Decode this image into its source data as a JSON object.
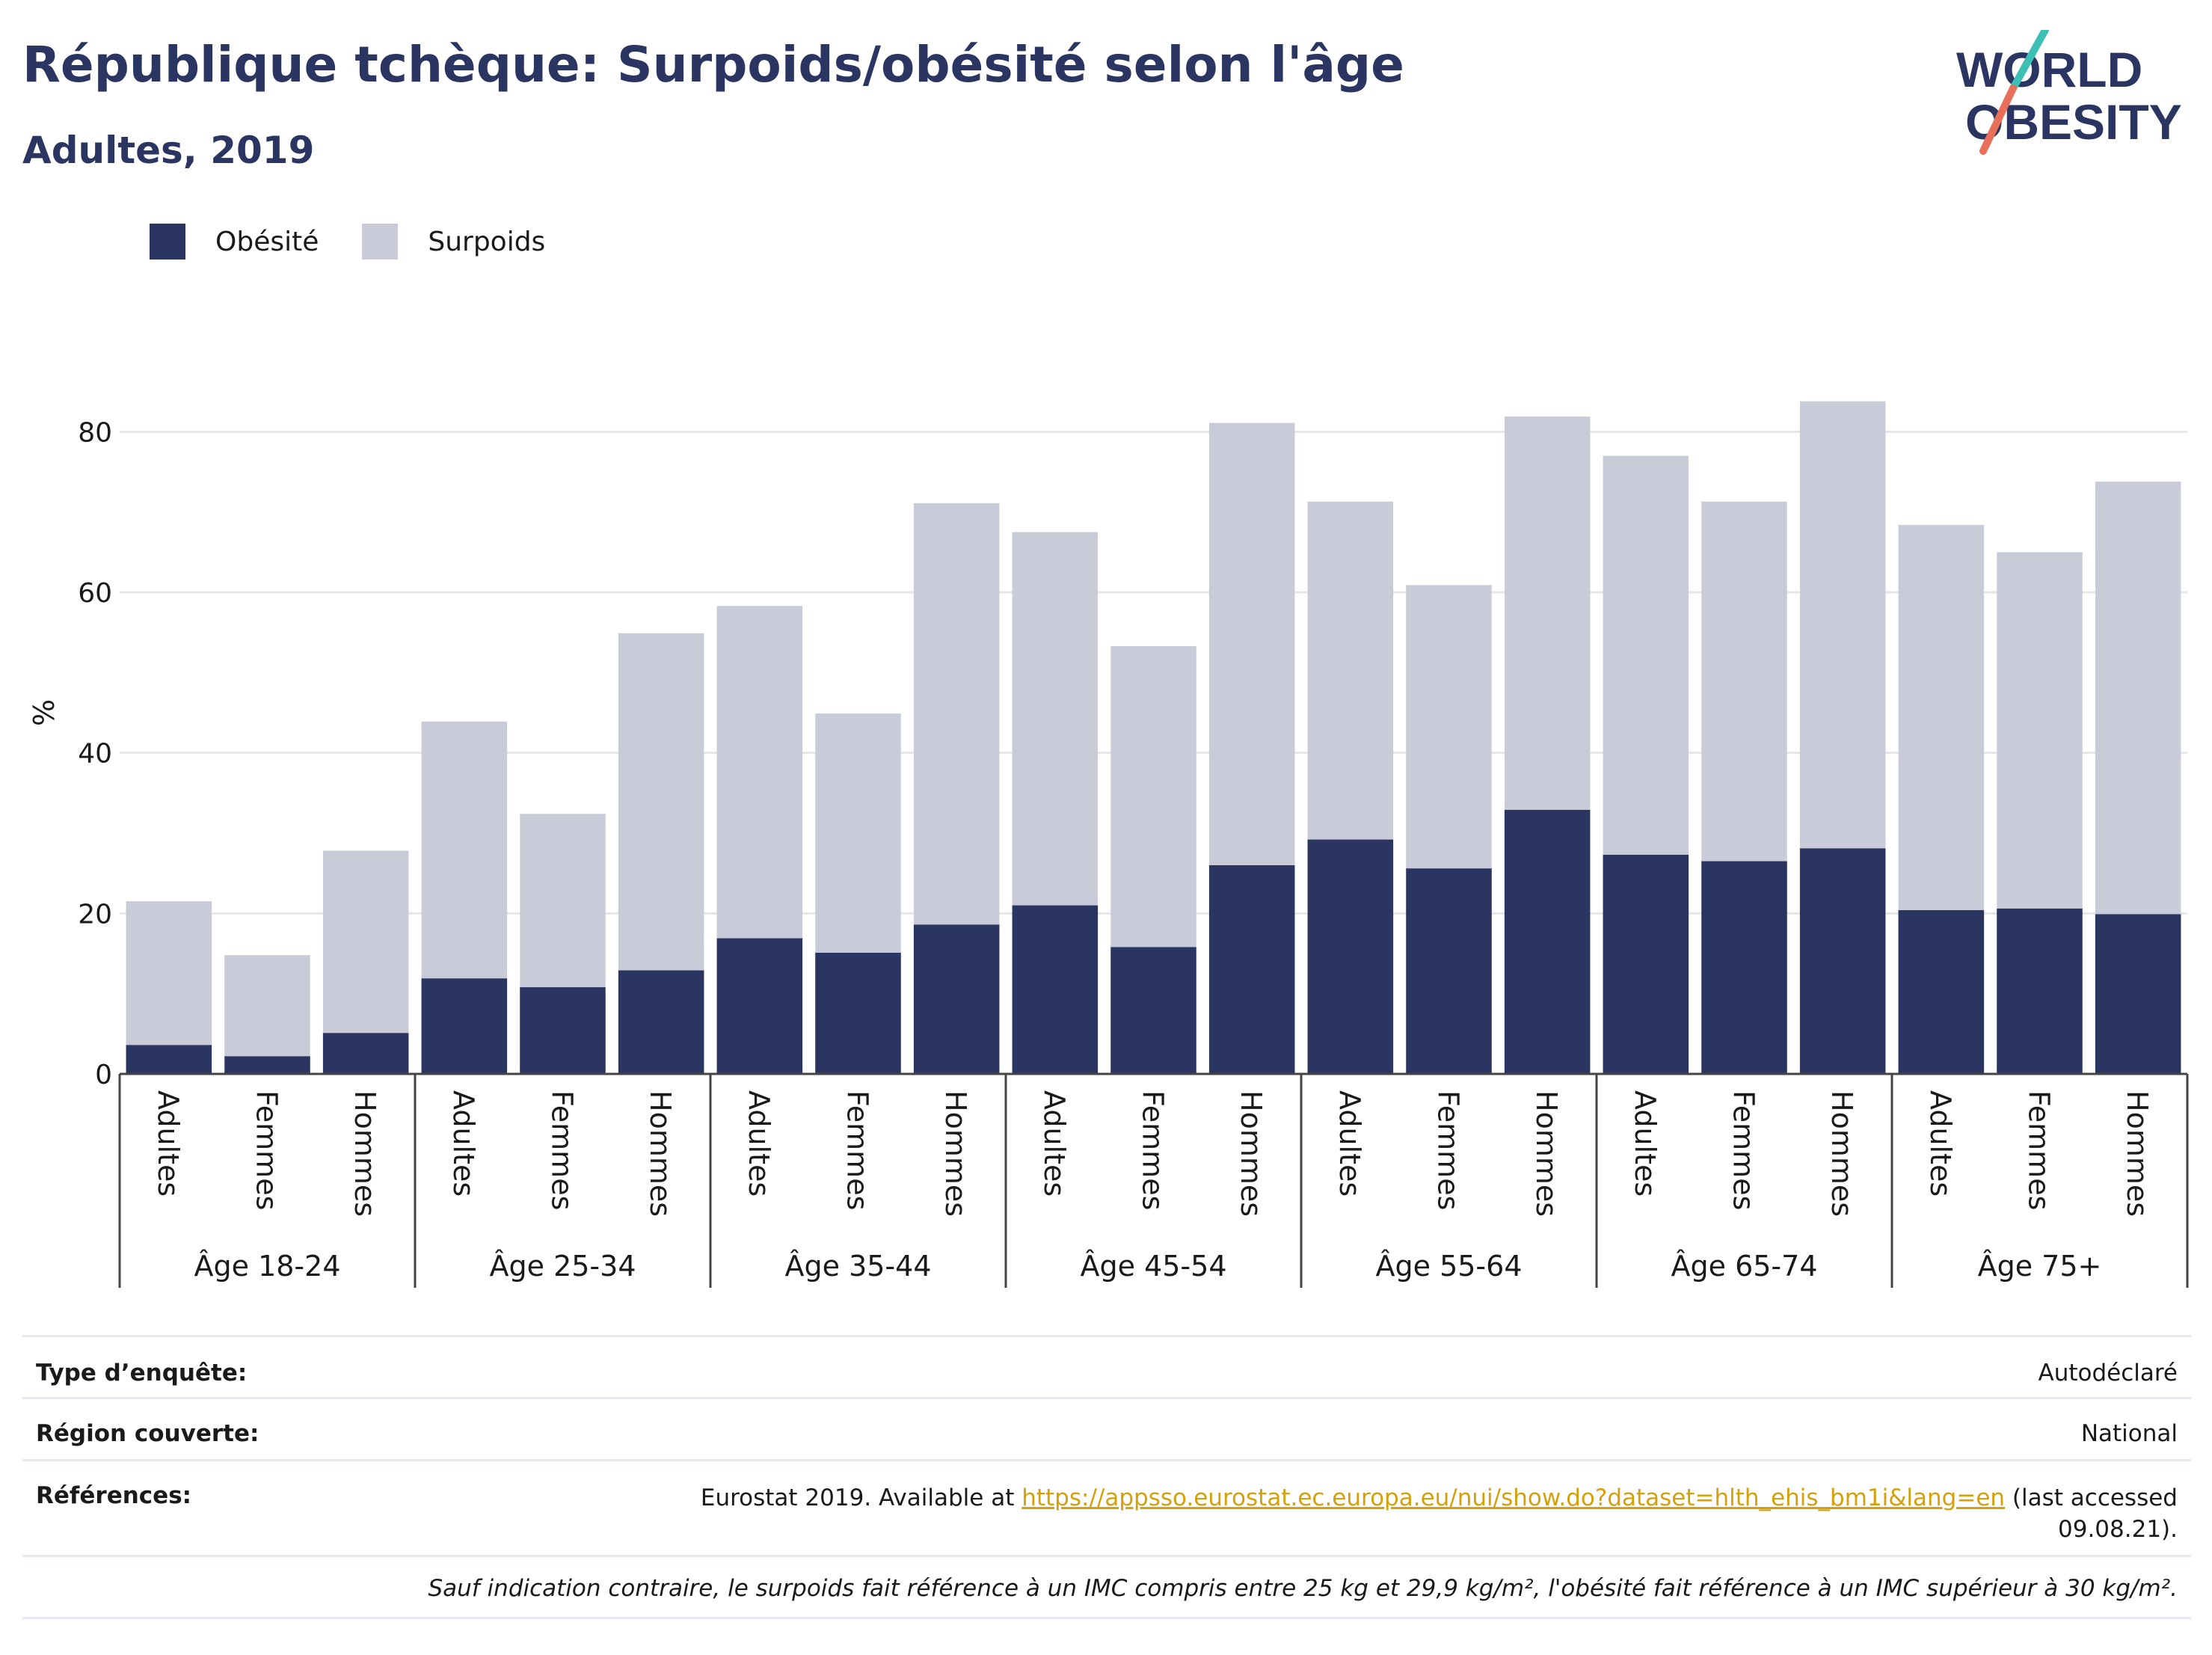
{
  "title": "République tchèque: Surpoids/obésité selon l'âge",
  "subtitle": "Adultes, 2019",
  "logo": {
    "line1": "WORLD",
    "line2": "OBESITY"
  },
  "legend": [
    {
      "label": "Obésité",
      "color": "#2a3561"
    },
    {
      "label": "Surpoids",
      "color": "#c9ccd8"
    }
  ],
  "chart_data": {
    "type": "bar",
    "stacked": true,
    "ylabel": "%",
    "ylim": [
      0,
      90
    ],
    "yticks": [
      0,
      20,
      40,
      60,
      80
    ],
    "grid": true,
    "legend_position": "top-left",
    "groups": [
      "Âge 18-24",
      "Âge 25-34",
      "Âge 35-44",
      "Âge 45-54",
      "Âge 55-64",
      "Âge 65-74",
      "Âge 75+"
    ],
    "subcategories": [
      "Adultes",
      "Femmes",
      "Hommes"
    ],
    "series": [
      {
        "name": "Obésité",
        "color": "#2a3561",
        "values": [
          3.6,
          2.2,
          5.1,
          11.9,
          10.8,
          12.9,
          16.9,
          15.1,
          18.6,
          21.0,
          15.8,
          26.0,
          29.2,
          25.6,
          32.9,
          27.3,
          26.5,
          28.1,
          20.4,
          20.6,
          19.9
        ]
      },
      {
        "name": "Surpoids",
        "color": "#c9ccd8",
        "values": [
          17.9,
          12.6,
          22.7,
          32.0,
          21.6,
          42.0,
          41.4,
          29.8,
          52.5,
          46.5,
          37.5,
          55.1,
          42.1,
          35.3,
          49.0,
          49.7,
          44.8,
          55.7,
          48.0,
          44.4,
          53.9
        ]
      }
    ]
  },
  "info": {
    "survey_label": "Type d’enquête:",
    "survey_value": "Autodéclaré",
    "region_label": "Région couverte:",
    "region_value": "National",
    "ref_label": "Références:",
    "ref_prefix": "Eurostat 2019. Available at ",
    "ref_link": "https://appsso.eurostat.ec.europa.eu/nui/show.do?dataset=hlth_ehis_bm1i&lang=en",
    "ref_suffix": " (last accessed",
    "ref_line2": "09.08.21).",
    "note": "Sauf indication contraire, le surpoids fait référence à un IMC compris entre 25 kg et 29,9 kg/m², l'obésité fait référence à un IMC supérieur à 30 kg/m²."
  }
}
